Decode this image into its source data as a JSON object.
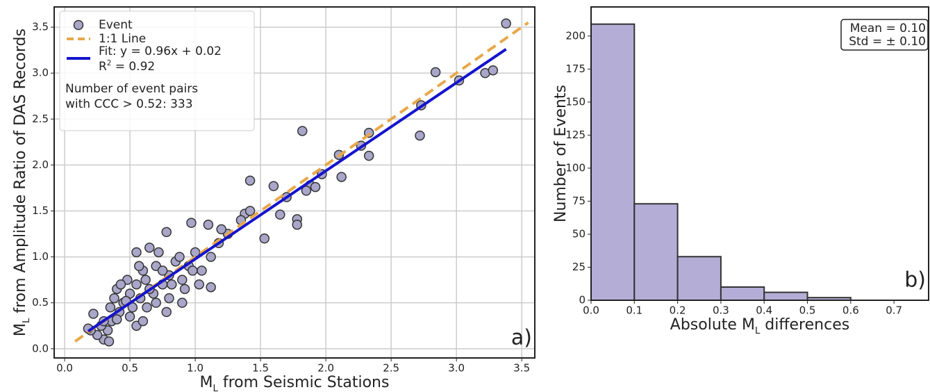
{
  "chart_data": [
    {
      "type": "scatter",
      "xlabel": {
        "symbol": "M",
        "subscript": "L",
        "text": " from Seismic Stations"
      },
      "ylabel": {
        "symbol": "M",
        "subscript": "L",
        "text": " from Amplitude Ratio of DAS Records"
      },
      "xlim": [
        -0.08,
        3.6
      ],
      "ylim": [
        -0.1,
        3.72
      ],
      "xticks": [
        {
          "value": 0,
          "label": "0.0"
        },
        0.5,
        {
          "value": 1,
          "label": "1.0"
        },
        1.5,
        {
          "value": 2,
          "label": "2.0"
        },
        2.5,
        {
          "value": 3,
          "label": "3.0"
        },
        3.5
      ],
      "yticks": [
        {
          "value": 0,
          "label": "0.0"
        },
        0.5,
        {
          "value": 1,
          "label": "1.0"
        },
        1.5,
        {
          "value": 2,
          "label": "2.0"
        },
        2.5,
        {
          "value": 3,
          "label": "3.0"
        },
        3.5
      ],
      "grid": true,
      "series": [
        {
          "name": "Event",
          "mark": "point",
          "color": "#a9a6c9",
          "x": [
            0.55,
            0.78,
            0.97,
            1.82,
            2.84,
            3.38,
            3.22,
            3.28,
            3.02,
            2.73,
            2.72,
            2.33,
            2.33,
            2.27,
            2.1,
            2.12,
            1.97,
            1.88,
            1.92,
            1.85,
            1.7,
            1.65,
            1.53,
            1.38,
            1.42,
            1.6,
            1.78,
            1.78,
            1.42,
            1.35,
            1.25,
            1.2,
            1.1,
            1.18,
            1.12,
            1.12,
            1.05,
            1.0,
            0.95,
            0.9,
            0.85,
            0.8,
            0.75,
            0.7,
            0.68,
            0.65,
            0.62,
            0.6,
            0.58,
            0.55,
            0.52,
            0.5,
            0.48,
            0.45,
            0.42,
            0.4,
            0.38,
            0.36,
            0.35,
            0.33,
            0.3,
            0.28,
            0.25,
            0.22,
            0.2,
            0.18,
            0.34,
            0.43,
            0.5,
            0.55,
            0.6,
            0.63,
            0.72,
            0.78,
            0.8,
            0.9,
            0.92,
            0.98,
            1.03,
            0.88,
            0.7,
            0.65,
            0.75,
            0.82,
            0.57,
            0.47,
            0.4,
            0.3
          ],
          "values": [
            1.05,
            1.27,
            1.37,
            2.37,
            3.01,
            3.54,
            3.0,
            3.03,
            2.92,
            2.65,
            2.32,
            2.35,
            2.1,
            2.21,
            2.11,
            1.87,
            1.9,
            1.78,
            1.76,
            1.72,
            1.65,
            1.46,
            1.2,
            1.47,
            1.83,
            1.77,
            1.41,
            1.35,
            1.5,
            1.4,
            1.25,
            1.3,
            1.35,
            1.15,
            1.0,
            0.67,
            0.85,
            1.05,
            0.9,
            0.75,
            0.95,
            0.8,
            0.7,
            0.9,
            0.6,
            1.1,
            0.75,
            0.85,
            0.55,
            0.7,
            0.45,
            0.6,
            0.75,
            0.5,
            0.4,
            0.65,
            0.55,
            0.3,
            0.45,
            0.2,
            0.1,
            0.25,
            0.15,
            0.38,
            0.2,
            0.22,
            0.08,
            0.7,
            0.35,
            0.25,
            0.3,
            0.45,
            1.05,
            0.4,
            0.55,
            0.5,
            0.65,
            0.85,
            0.7,
            1.0,
            0.5,
            0.65,
            0.85,
            0.7,
            0.9,
            0.52,
            0.32,
            0.3
          ]
        },
        {
          "name": "1:1 Line",
          "mark": "line",
          "dashed": true,
          "color": "#e8a84a",
          "x": [
            0.08,
            3.55
          ],
          "values": [
            0.08,
            3.55
          ]
        },
        {
          "name": "Fit: y = 0.96x + 0.02",
          "mark": "line",
          "dashed": false,
          "color": "#1414cc",
          "x": [
            0.18,
            3.38
          ],
          "values": [
            0.19,
            3.26
          ]
        }
      ],
      "fit_r2": {
        "symbol": "R",
        "superscript": "2",
        "text": " = 0.92"
      },
      "annotation": [
        "Number of event pairs",
        "with CCC > 0.52: 333"
      ],
      "panel_label": "a)"
    },
    {
      "type": "histogram",
      "xlabel": {
        "prefix": "Absolute ",
        "symbol": "M",
        "subscript": "L",
        "text": " differences"
      },
      "ylabel": {
        "text": "Number of Events"
      },
      "xlim": [
        0,
        0.78
      ],
      "ylim": [
        0,
        222
      ],
      "xticks": [
        {
          "value": 0,
          "label": "0.0"
        },
        0.1,
        0.2,
        0.3,
        0.4,
        0.5,
        0.6,
        0.7
      ],
      "yticks": [
        0,
        25,
        50,
        75,
        100,
        125,
        150,
        175,
        200
      ],
      "grid": false,
      "bins": [
        0,
        0.1,
        0.2,
        0.3,
        0.4,
        0.5,
        0.6
      ],
      "values": [
        209,
        73,
        33,
        10,
        6,
        2
      ],
      "color": "#b4aed6",
      "stats": [
        "Mean = 0.10",
        "Std = ± 0.10"
      ],
      "panel_label": "b)"
    }
  ]
}
